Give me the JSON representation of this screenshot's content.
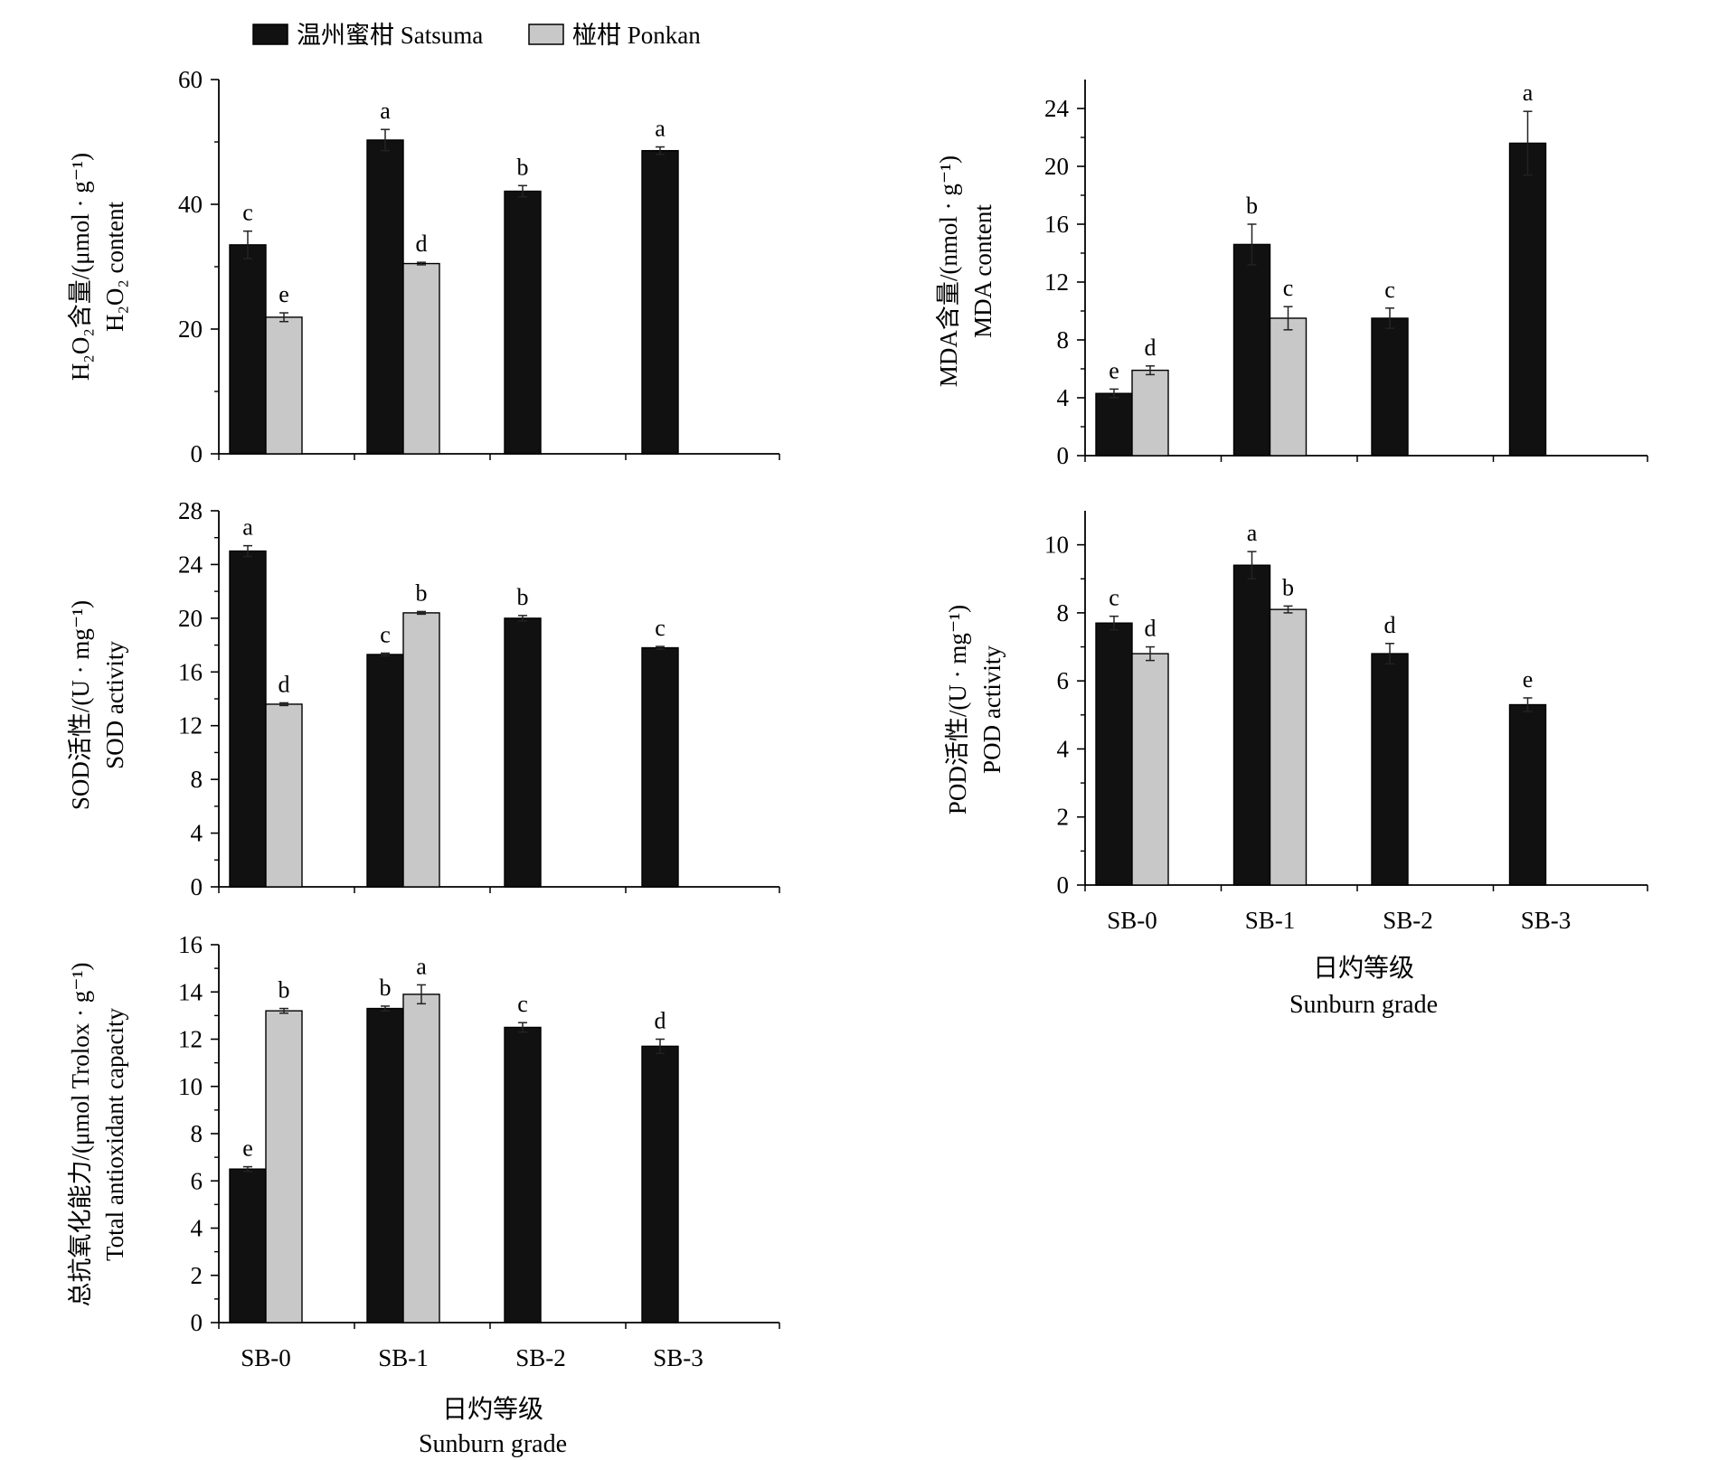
{
  "legend": [
    {
      "label": "温州蜜柑 Satsuma",
      "color": "#111111"
    },
    {
      "label": "椪柑 Ponkan",
      "color": "#c8c8c8"
    }
  ],
  "x_axis_title": {
    "zh": "日灼等级",
    "en": "Sunburn grade"
  },
  "chart_data": [
    {
      "type": "bar",
      "categories": [
        "SB-0",
        "SB-1",
        "SB-2",
        "SB-3"
      ],
      "ylabel_zh": "H₂O₂含量/(μmol · g⁻¹)",
      "ylabel_en": "H₂O₂ content",
      "ylim": [
        0,
        60
      ],
      "yticks": [
        0,
        20,
        40,
        60
      ],
      "series": [
        {
          "name": "温州蜜柑 Satsuma",
          "values": [
            33.5,
            50.3,
            42.1,
            48.6
          ],
          "errors": [
            2.2,
            1.7,
            0.9,
            0.6
          ],
          "labels": [
            "c",
            "a",
            "b",
            "a"
          ]
        },
        {
          "name": "椪柑 Ponkan",
          "values": [
            21.9,
            30.5,
            null,
            null
          ],
          "errors": [
            0.7,
            0.2,
            null,
            null
          ],
          "labels": [
            "e",
            "d",
            null,
            null
          ]
        }
      ]
    },
    {
      "type": "bar",
      "categories": [
        "SB-0",
        "SB-1",
        "SB-2",
        "SB-3"
      ],
      "ylabel_zh": "MDA含量/(nmol · g⁻¹)",
      "ylabel_en": "MDA content",
      "ylim": [
        0,
        26
      ],
      "yticks": [
        0,
        4,
        8,
        12,
        16,
        20,
        24
      ],
      "series": [
        {
          "name": "温州蜜柑 Satsuma",
          "values": [
            4.3,
            14.6,
            9.5,
            21.6
          ],
          "errors": [
            0.3,
            1.4,
            0.7,
            2.2
          ],
          "labels": [
            "e",
            "b",
            "c",
            "a"
          ]
        },
        {
          "name": "椪柑 Ponkan",
          "values": [
            5.9,
            9.5,
            null,
            null
          ],
          "errors": [
            0.3,
            0.8,
            null,
            null
          ],
          "labels": [
            "d",
            "c",
            null,
            null
          ]
        }
      ]
    },
    {
      "type": "bar",
      "categories": [
        "SB-0",
        "SB-1",
        "SB-2",
        "SB-3"
      ],
      "ylabel_zh": "SOD活性/(U · mg⁻¹)",
      "ylabel_en": "SOD activity",
      "ylim": [
        0,
        28
      ],
      "yticks": [
        0,
        4,
        8,
        12,
        16,
        20,
        24,
        28
      ],
      "series": [
        {
          "name": "温州蜜柑 Satsuma",
          "values": [
            25.0,
            17.3,
            20.0,
            17.8
          ],
          "errors": [
            0.4,
            0.1,
            0.2,
            0.1
          ],
          "labels": [
            "a",
            "c",
            "b",
            "c"
          ]
        },
        {
          "name": "椪柑 Ponkan",
          "values": [
            13.6,
            20.4,
            null,
            null
          ],
          "errors": [
            0.1,
            0.1,
            null,
            null
          ],
          "labels": [
            "d",
            "b",
            null,
            null
          ]
        }
      ]
    },
    {
      "type": "bar",
      "categories": [
        "SB-0",
        "SB-1",
        "SB-2",
        "SB-3"
      ],
      "ylabel_zh": "POD活性/(U · mg⁻¹)",
      "ylabel_en": "POD activity",
      "ylim": [
        0,
        11
      ],
      "yticks": [
        0,
        2,
        4,
        6,
        8,
        10
      ],
      "series": [
        {
          "name": "温州蜜柑 Satsuma",
          "values": [
            7.7,
            9.4,
            6.8,
            5.3
          ],
          "errors": [
            0.2,
            0.4,
            0.3,
            0.2
          ],
          "labels": [
            "c",
            "a",
            "d",
            "e"
          ]
        },
        {
          "name": "椪柑 Ponkan",
          "values": [
            6.8,
            8.1,
            null,
            null
          ],
          "errors": [
            0.2,
            0.1,
            null,
            null
          ],
          "labels": [
            "d",
            "b",
            null,
            null
          ]
        }
      ]
    },
    {
      "type": "bar",
      "categories": [
        "SB-0",
        "SB-1",
        "SB-2",
        "SB-3"
      ],
      "ylabel_zh": "总抗氧化能力/(μmol Trolox · g⁻¹)",
      "ylabel_en": "Total antioxidant capacity",
      "ylim": [
        0,
        16
      ],
      "yticks": [
        0,
        2,
        4,
        6,
        8,
        10,
        12,
        14,
        16
      ],
      "series": [
        {
          "name": "温州蜜柑 Satsuma",
          "values": [
            6.5,
            13.3,
            12.5,
            11.7
          ],
          "errors": [
            0.1,
            0.1,
            0.2,
            0.3
          ],
          "labels": [
            "e",
            "b",
            "c",
            "d"
          ]
        },
        {
          "name": "椪柑 Ponkan",
          "values": [
            13.2,
            13.9,
            null,
            null
          ],
          "errors": [
            0.1,
            0.4,
            null,
            null
          ],
          "labels": [
            "b",
            "a",
            null,
            null
          ]
        }
      ]
    }
  ]
}
